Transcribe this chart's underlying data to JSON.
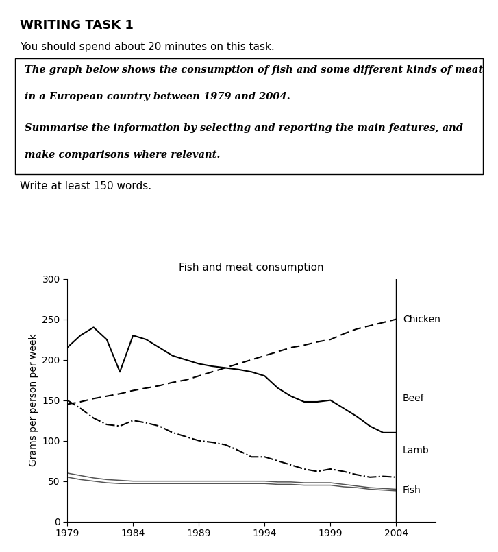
{
  "title": "Fish and meat consumption",
  "ylabel": "Grams per person per week",
  "heading_title": "WRITING TASK 1",
  "line1": "You should spend about 20 minutes on this task.",
  "box_text1": "The graph below shows the consumption of fish and some different kinds of meat",
  "box_text2": "in a European country between 1979 and 2004.",
  "box_text3": "Summarise the information by selecting and reporting the main features, and",
  "box_text4": "make comparisons where relevant.",
  "footer": "Write at least 150 words.",
  "bg_color": "#ffffff",
  "ylim": [
    0,
    300
  ],
  "beef_years": [
    1979,
    1980,
    1981,
    1982,
    1983,
    1984,
    1985,
    1986,
    1987,
    1988,
    1989,
    1990,
    1991,
    1992,
    1993,
    1994,
    1995,
    1996,
    1997,
    1998,
    1999,
    2000,
    2001,
    2002,
    2003,
    2004
  ],
  "beef_vals": [
    215,
    230,
    240,
    225,
    185,
    230,
    225,
    215,
    205,
    200,
    195,
    192,
    190,
    188,
    185,
    180,
    165,
    155,
    148,
    148,
    150,
    140,
    130,
    118,
    110,
    110
  ],
  "chicken_years": [
    1979,
    1980,
    1981,
    1982,
    1983,
    1984,
    1985,
    1986,
    1987,
    1988,
    1989,
    1990,
    1991,
    1992,
    1993,
    1994,
    1995,
    1996,
    1997,
    1998,
    1999,
    2000,
    2001,
    2002,
    2003,
    2004
  ],
  "chicken_vals": [
    145,
    148,
    152,
    155,
    158,
    162,
    165,
    168,
    172,
    175,
    180,
    185,
    190,
    195,
    200,
    205,
    210,
    215,
    218,
    222,
    225,
    232,
    238,
    242,
    246,
    250
  ],
  "lamb_years": [
    1979,
    1980,
    1981,
    1982,
    1983,
    1984,
    1985,
    1986,
    1987,
    1988,
    1989,
    1990,
    1991,
    1992,
    1993,
    1994,
    1995,
    1996,
    1997,
    1998,
    1999,
    2000,
    2001,
    2002,
    2003,
    2004
  ],
  "lamb_vals": [
    150,
    140,
    128,
    120,
    118,
    125,
    122,
    118,
    110,
    105,
    100,
    98,
    95,
    88,
    80,
    80,
    75,
    70,
    65,
    62,
    65,
    62,
    58,
    55,
    56,
    55
  ],
  "fish_years": [
    1979,
    1980,
    1981,
    1982,
    1983,
    1984,
    1985,
    1986,
    1987,
    1988,
    1989,
    1990,
    1991,
    1992,
    1993,
    1994,
    1995,
    1996,
    1997,
    1998,
    1999,
    2000,
    2001,
    2002,
    2003,
    2004
  ],
  "fish_vals": [
    60,
    57,
    54,
    52,
    51,
    50,
    50,
    50,
    50,
    50,
    50,
    50,
    50,
    50,
    50,
    50,
    49,
    49,
    48,
    48,
    48,
    46,
    44,
    42,
    41,
    40
  ],
  "fish2_vals": [
    55,
    52,
    50,
    48,
    47,
    47,
    47,
    47,
    47,
    47,
    47,
    47,
    47,
    47,
    47,
    47,
    46,
    46,
    45,
    45,
    45,
    43,
    42,
    40,
    39,
    38
  ]
}
